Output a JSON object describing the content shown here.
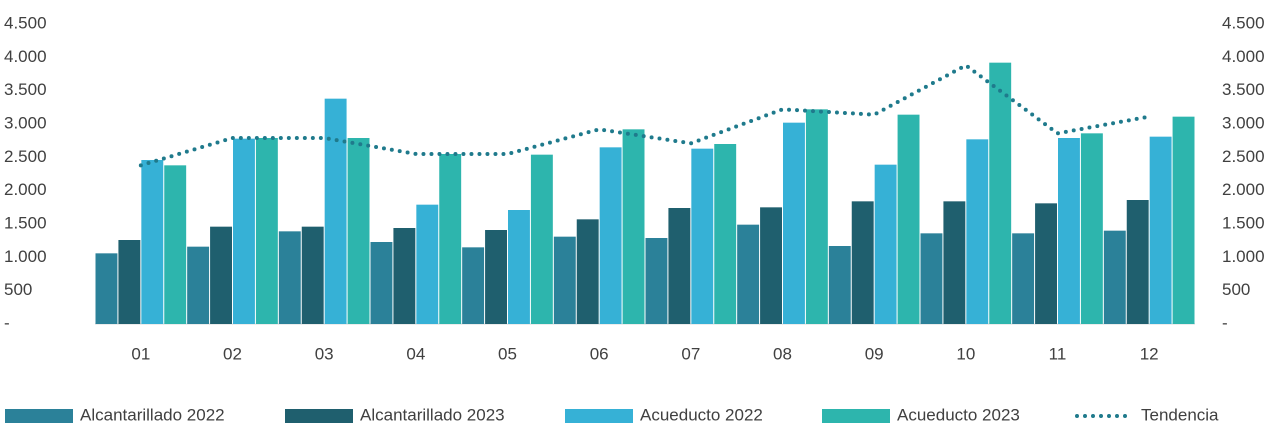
{
  "chart_data": {
    "type": "bar",
    "categories": [
      "01",
      "02",
      "03",
      "04",
      "05",
      "06",
      "07",
      "08",
      "09",
      "10",
      "11",
      "12"
    ],
    "series": [
      {
        "name": "Alcantarillado 2022",
        "color": "#2b8199",
        "values": [
          1060,
          1160,
          1390,
          1230,
          1150,
          1310,
          1290,
          1490,
          1170,
          1360,
          1360,
          1400
        ]
      },
      {
        "name": "Alcantarillado 2023",
        "color": "#1f5f6e",
        "values": [
          1260,
          1460,
          1460,
          1440,
          1410,
          1570,
          1740,
          1750,
          1840,
          1840,
          1810,
          1860
        ]
      },
      {
        "name": "Acueducto 2022",
        "color": "#36b1d6",
        "values": [
          2460,
          2780,
          3380,
          1790,
          1710,
          2650,
          2630,
          3020,
          2390,
          2770,
          2790,
          2810
        ]
      },
      {
        "name": "Acueducto 2023",
        "color": "#2db5ad",
        "values": [
          2380,
          2790,
          2790,
          2550,
          2540,
          2920,
          2700,
          3220,
          3140,
          3920,
          2860,
          3110
        ]
      },
      {
        "name": "Tendencia",
        "type": "line",
        "style": "dotted",
        "color": "#1f7a8c",
        "values": [
          2380,
          2790,
          2790,
          2550,
          2550,
          2920,
          2710,
          3220,
          3140,
          3880,
          2860,
          3110
        ]
      }
    ],
    "ylim": [
      0,
      4500
    ],
    "yticks": [
      {
        "value": 0,
        "label": "-"
      },
      {
        "value": 500,
        "label": "500"
      },
      {
        "value": 1000,
        "label": "1.000"
      },
      {
        "value": 1500,
        "label": "1.500"
      },
      {
        "value": 2000,
        "label": "2.000"
      },
      {
        "value": 2500,
        "label": "2.500"
      },
      {
        "value": 3000,
        "label": "3.000"
      },
      {
        "value": 3500,
        "label": "3.500"
      },
      {
        "value": 4000,
        "label": "4.000"
      },
      {
        "value": 4500,
        "label": "4.500"
      }
    ],
    "y2lim": [
      0,
      4500
    ],
    "y2ticks": [
      {
        "value": 0,
        "label": "-"
      },
      {
        "value": 500,
        "label": "500"
      },
      {
        "value": 1000,
        "label": "1.000"
      },
      {
        "value": 1500,
        "label": "1.500"
      },
      {
        "value": 2000,
        "label": "2.000"
      },
      {
        "value": 2500,
        "label": "2.500"
      },
      {
        "value": 3000,
        "label": "3.000"
      },
      {
        "value": 3500,
        "label": "3.500"
      },
      {
        "value": 4000,
        "label": "4.000"
      },
      {
        "value": 4500,
        "label": "4.500"
      }
    ],
    "grid": false,
    "legend": "bottom"
  }
}
